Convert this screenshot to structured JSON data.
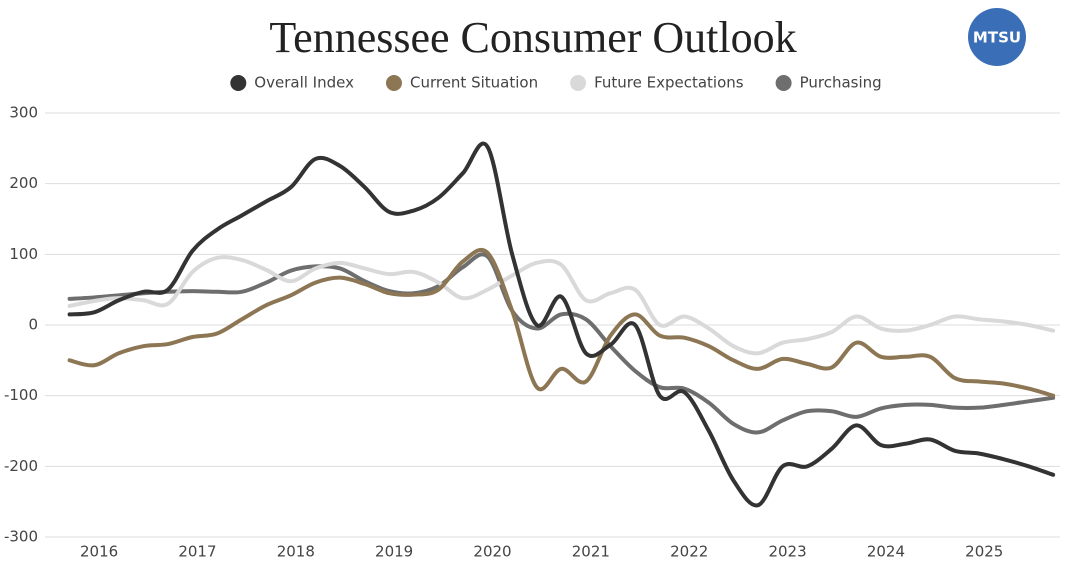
{
  "chart_data": {
    "type": "line",
    "title": "Tennessee Consumer Outlook",
    "logo": "MTSU",
    "x": [
      2015.7,
      2015.95,
      2016.2,
      2016.45,
      2016.7,
      2016.95,
      2017.2,
      2017.45,
      2017.7,
      2017.95,
      2018.2,
      2018.45,
      2018.7,
      2018.95,
      2019.2,
      2019.45,
      2019.7,
      2019.95,
      2020.2,
      2020.45,
      2020.7,
      2020.95,
      2021.2,
      2021.45,
      2021.7,
      2021.95,
      2022.2,
      2022.45,
      2022.7,
      2022.95,
      2023.2,
      2023.45,
      2023.7,
      2023.95,
      2024.2,
      2024.45,
      2024.7,
      2024.95,
      2025.2,
      2025.45,
      2025.7
    ],
    "series": [
      {
        "name": "Overall Index",
        "color": "#333333",
        "values": [
          15,
          18,
          35,
          47,
          50,
          105,
          135,
          155,
          175,
          195,
          235,
          225,
          195,
          160,
          162,
          180,
          215,
          252,
          100,
          0,
          40,
          -40,
          -28,
          0,
          -100,
          -95,
          -150,
          -220,
          -255,
          -200,
          -200,
          -175,
          -142,
          -170,
          -168,
          -162,
          -178,
          -182,
          -190,
          -200,
          -212
        ]
      },
      {
        "name": "Current Situation",
        "color": "#8c7653",
        "values": [
          -50,
          -57,
          -40,
          -30,
          -27,
          -17,
          -12,
          8,
          28,
          42,
          60,
          67,
          58,
          45,
          43,
          50,
          90,
          102,
          20,
          -88,
          -62,
          -80,
          -15,
          15,
          -15,
          -18,
          -30,
          -50,
          -62,
          -48,
          -55,
          -60,
          -25,
          -45,
          -45,
          -45,
          -75,
          -80,
          -83,
          -90,
          -100
        ]
      },
      {
        "name": "Future Expectations",
        "color": "#d9d9d9",
        "values": [
          27,
          34,
          38,
          35,
          30,
          75,
          95,
          92,
          78,
          62,
          80,
          88,
          80,
          72,
          75,
          60,
          38,
          50,
          70,
          88,
          85,
          35,
          45,
          50,
          0,
          12,
          -5,
          -30,
          -40,
          -25,
          -20,
          -10,
          12,
          -5,
          -8,
          0,
          12,
          8,
          5,
          0,
          -8
        ]
      },
      {
        "name": "Purchasing",
        "color": "#6e6e6e",
        "values": [
          37,
          39,
          42,
          45,
          47,
          48,
          47,
          47,
          60,
          77,
          83,
          80,
          62,
          48,
          45,
          55,
          82,
          97,
          20,
          -5,
          15,
          8,
          -30,
          -65,
          -88,
          -90,
          -110,
          -140,
          -152,
          -135,
          -122,
          -122,
          -130,
          -118,
          -113,
          -113,
          -117,
          -117,
          -113,
          -108,
          -103
        ]
      }
    ],
    "xlim": [
      2015.45,
      2025.77
    ],
    "xticks": [
      2016,
      2017,
      2018,
      2019,
      2020,
      2021,
      2022,
      2023,
      2024,
      2025
    ],
    "ylim": [
      -300,
      300
    ],
    "yticks": [
      -300,
      -200,
      -100,
      0,
      100,
      200,
      300
    ],
    "grid": true
  }
}
